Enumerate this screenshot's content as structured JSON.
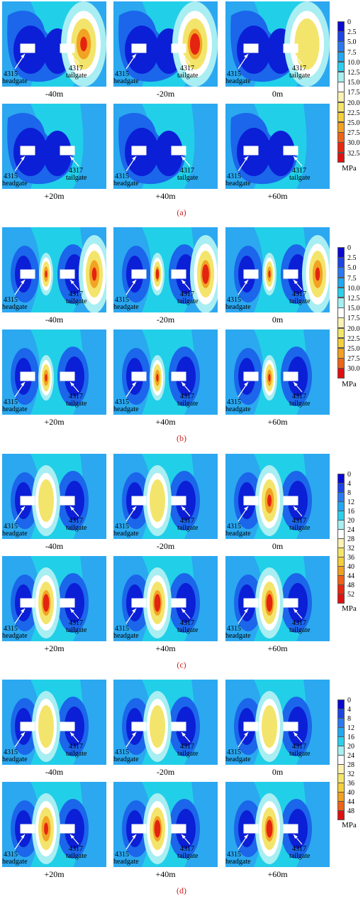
{
  "groups": [
    {
      "id": "a",
      "label": "(a)",
      "unit": "MPa",
      "legend_ticks": [
        "0",
        "2.5",
        "5.0",
        "7.5",
        "10.0",
        "12.5",
        "15.0",
        "17.5",
        "20.0",
        "22.5",
        "25.0",
        "27.5",
        "30.0",
        "32.5"
      ],
      "legend_colors": [
        "#0a0ad2",
        "#1c44e6",
        "#2a79f0",
        "#22a8f2",
        "#2bd0ef",
        "#a5f0f0",
        "#ffffff",
        "#fbf1b2",
        "#f4e56a",
        "#f4cf3a",
        "#f2a020",
        "#ee6416",
        "#e8280e",
        "#e01010"
      ],
      "panels": [
        {
          "label": "-40m",
          "hot": "right",
          "intensity": 2
        },
        {
          "label": "-20m",
          "hot": "right",
          "intensity": 3
        },
        {
          "label": "0m",
          "hot": "right",
          "intensity": 1
        },
        {
          "label": "+20m",
          "hot": "none",
          "intensity": 0
        },
        {
          "label": "+40m",
          "hot": "none",
          "intensity": 0
        },
        {
          "label": "+60m",
          "hot": "none",
          "intensity": 0
        }
      ]
    },
    {
      "id": "b",
      "label": "(b)",
      "unit": "MPa",
      "legend_ticks": [
        "0",
        "2.5",
        "5.0",
        "7.5",
        "10.0",
        "12.5",
        "15.0",
        "17.5",
        "20.0",
        "22.5",
        "25.0",
        "27.5",
        "30.0"
      ],
      "legend_colors": [
        "#0a0ad2",
        "#1c44e6",
        "#2a79f0",
        "#22a8f2",
        "#2bd0ef",
        "#a5f0f0",
        "#ffffff",
        "#fbf1b2",
        "#f4e56a",
        "#f4cf3a",
        "#f2a020",
        "#ee6416",
        "#e01010"
      ],
      "panels": [
        {
          "label": "-40m",
          "hot": "mid-right",
          "intensity": 2
        },
        {
          "label": "-20m",
          "hot": "mid-right",
          "intensity": 3
        },
        {
          "label": "0m",
          "hot": "mid-right",
          "intensity": 2
        },
        {
          "label": "+20m",
          "hot": "mid",
          "intensity": 2
        },
        {
          "label": "+40m",
          "hot": "mid",
          "intensity": 2
        },
        {
          "label": "+60m",
          "hot": "mid",
          "intensity": 2
        }
      ]
    },
    {
      "id": "c",
      "label": "(c)",
      "unit": "MPa",
      "legend_ticks": [
        "0",
        "4",
        "8",
        "12",
        "16",
        "20",
        "24",
        "28",
        "32",
        "36",
        "40",
        "44",
        "48",
        "52"
      ],
      "legend_colors": [
        "#0a0ad2",
        "#1c44e6",
        "#2a79f0",
        "#22a8f2",
        "#2bd0ef",
        "#a5f0f0",
        "#ffffff",
        "#fbf1b2",
        "#f4e56a",
        "#f4cf3a",
        "#f2a020",
        "#ee6416",
        "#e8280e",
        "#e01010"
      ],
      "panels": [
        {
          "label": "-40m",
          "hot": "midwide",
          "intensity": 1
        },
        {
          "label": "-20m",
          "hot": "midwide",
          "intensity": 1
        },
        {
          "label": "0m",
          "hot": "midwide",
          "intensity": 2
        },
        {
          "label": "+20m",
          "hot": "midwide",
          "intensity": 3
        },
        {
          "label": "+40m",
          "hot": "midwide",
          "intensity": 3
        },
        {
          "label": "+60m",
          "hot": "midwide",
          "intensity": 3
        }
      ]
    },
    {
      "id": "d",
      "label": "(d)",
      "unit": "MPa",
      "legend_ticks": [
        "0",
        "4",
        "8",
        "12",
        "16",
        "20",
        "24",
        "28",
        "32",
        "36",
        "40",
        "44",
        "48"
      ],
      "legend_colors": [
        "#0a0ad2",
        "#1c44e6",
        "#2a79f0",
        "#22a8f2",
        "#2bd0ef",
        "#a5f0f0",
        "#ffffff",
        "#fbf1b2",
        "#f4e56a",
        "#f4cf3a",
        "#f2a020",
        "#ee6416",
        "#e01010"
      ],
      "panels": [
        {
          "label": "-40m",
          "hot": "midwide",
          "intensity": 1
        },
        {
          "label": "-20m",
          "hot": "midwide",
          "intensity": 1
        },
        {
          "label": "0m",
          "hot": "midwide",
          "intensity": 1
        },
        {
          "label": "+20m",
          "hot": "midwide",
          "intensity": 2
        },
        {
          "label": "+40m",
          "hot": "midwide",
          "intensity": 3
        },
        {
          "label": "+60m",
          "hot": "midwide",
          "intensity": 3
        }
      ]
    }
  ],
  "headgate_number": "4315",
  "headgate_name": "headgate",
  "tailgate_number": "4317",
  "tailgate_name": "tailgate",
  "colors": {
    "background": "#22cfe8",
    "deep": "#0b1fd6",
    "mid": "#1b66ea",
    "light": "#2ba8f0",
    "pale": "#a8eef2",
    "white": "#ffffff",
    "yellow": "#f3e56b",
    "orange": "#f1a323",
    "red": "#e42410",
    "caption": "#cc2222"
  }
}
